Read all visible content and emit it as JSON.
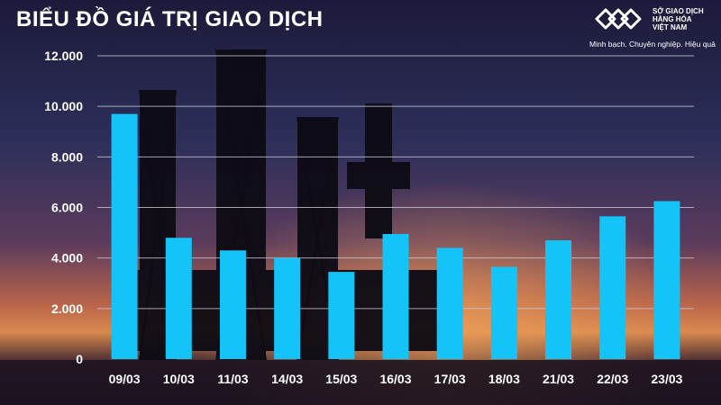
{
  "page": {
    "title": "BIỂU ĐỒ GIÁ TRỊ GIAO DỊCH"
  },
  "logo": {
    "name": "SỞ GIAO DỊCH\nHÀNG HÓA\nVIỆT NAM",
    "tagline": "Minh bạch. Chuyên nghiệp. Hiệu quả"
  },
  "colors": {
    "bar": "#14c3f7",
    "text": "#ffffff",
    "grid": "#c9c9d6"
  },
  "chart_data": {
    "type": "bar",
    "categories": [
      "09/03",
      "10/03",
      "11/03",
      "14/03",
      "15/03",
      "16/03",
      "17/03",
      "18/03",
      "21/03",
      "22/03",
      "23/03"
    ],
    "values": [
      9700,
      4800,
      4300,
      4000,
      3450,
      4950,
      4400,
      3650,
      4700,
      5650,
      6250
    ],
    "ylim": [
      0,
      12000
    ],
    "yticks": [
      "0",
      "2.000",
      "4.000",
      "6.000",
      "8.000",
      "10.000",
      "12.000"
    ],
    "ytick_values": [
      0,
      2000,
      4000,
      6000,
      8000,
      10000,
      12000
    ],
    "grid": true,
    "title": "BIỂU ĐỒ GIÁ TRỊ GIAO DỊCH",
    "xlabel": "",
    "ylabel": ""
  }
}
